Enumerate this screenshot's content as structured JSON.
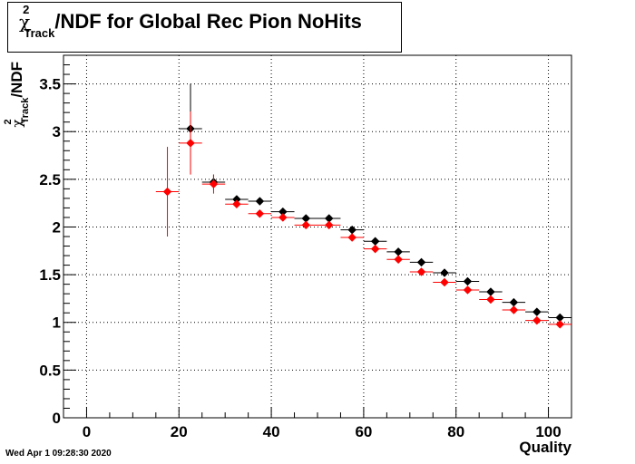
{
  "title": {
    "chi": "χ",
    "sup": "2",
    "sub": "Track",
    "rest": "/NDF for Global Rec Pion NoHits"
  },
  "ylabel": {
    "chi": "χ",
    "sup": "2",
    "sub": "Track",
    "rest": "/NDF"
  },
  "xlabel": "Quality",
  "footer": "Wed Apr  1 09:28:30 2020",
  "chart_data": {
    "type": "scatter",
    "title": "χ²_Track/NDF for Global Rec Pion NoHits",
    "xlabel": "Quality",
    "ylabel": "χ²_Track/NDF",
    "xlim": [
      -5,
      105
    ],
    "ylim": [
      0,
      3.8
    ],
    "grid": true,
    "x_ticks": [
      0,
      20,
      40,
      60,
      80,
      100
    ],
    "y_ticks": [
      0,
      0.5,
      1,
      1.5,
      2,
      2.5,
      3,
      3.5
    ],
    "x_tick_labels": [
      "0",
      "20",
      "40",
      "60",
      "80",
      "100"
    ],
    "y_tick_labels": [
      "0",
      "0.5",
      "1",
      "1.5",
      "2",
      "2.5",
      "3",
      "3.5"
    ],
    "series": [
      {
        "color": "#000000",
        "points": [
          {
            "x": 22.5,
            "y": 3.03,
            "xerr": 2.5,
            "yerr": 0.47
          },
          {
            "x": 27.5,
            "y": 2.47,
            "xerr": 2.5,
            "yerr": 0.08
          },
          {
            "x": 32.5,
            "y": 2.29,
            "xerr": 2.5,
            "yerr": 0.02
          },
          {
            "x": 37.5,
            "y": 2.27,
            "xerr": 2.5,
            "yerr": 0.02
          },
          {
            "x": 42.5,
            "y": 2.16,
            "xerr": 2.5,
            "yerr": 0.01
          },
          {
            "x": 47.5,
            "y": 2.09,
            "xerr": 2.5,
            "yerr": 0.01
          },
          {
            "x": 52.5,
            "y": 2.09,
            "xerr": 2.5,
            "yerr": 0.01
          },
          {
            "x": 57.5,
            "y": 1.97,
            "xerr": 2.5,
            "yerr": 0.01
          },
          {
            "x": 62.5,
            "y": 1.85,
            "xerr": 2.5,
            "yerr": 0.01
          },
          {
            "x": 67.5,
            "y": 1.74,
            "xerr": 2.5,
            "yerr": 0.01
          },
          {
            "x": 72.5,
            "y": 1.63,
            "xerr": 2.5,
            "yerr": 0.01
          },
          {
            "x": 77.5,
            "y": 1.52,
            "xerr": 2.5,
            "yerr": 0.01
          },
          {
            "x": 82.5,
            "y": 1.43,
            "xerr": 2.5,
            "yerr": 0.01
          },
          {
            "x": 87.5,
            "y": 1.32,
            "xerr": 2.5,
            "yerr": 0.01
          },
          {
            "x": 92.5,
            "y": 1.21,
            "xerr": 2.5,
            "yerr": 0.01
          },
          {
            "x": 97.5,
            "y": 1.11,
            "xerr": 2.5,
            "yerr": 0.01
          },
          {
            "x": 102.5,
            "y": 1.05,
            "xerr": 2.5,
            "yerr": 0.01
          }
        ]
      },
      {
        "color": "#ff0000",
        "points": [
          {
            "x": 17.5,
            "y": 2.37,
            "xerr": 2.5,
            "yerr": 0.47
          },
          {
            "x": 22.5,
            "y": 2.88,
            "xerr": 2.5,
            "yerr": 0.33
          },
          {
            "x": 27.5,
            "y": 2.45,
            "xerr": 2.5,
            "yerr": 0.1
          },
          {
            "x": 32.5,
            "y": 2.24,
            "xerr": 2.5,
            "yerr": 0.02
          },
          {
            "x": 37.5,
            "y": 2.14,
            "xerr": 2.5,
            "yerr": 0.02
          },
          {
            "x": 42.5,
            "y": 2.1,
            "xerr": 2.5,
            "yerr": 0.01
          },
          {
            "x": 47.5,
            "y": 2.02,
            "xerr": 2.5,
            "yerr": 0.01
          },
          {
            "x": 52.5,
            "y": 2.02,
            "xerr": 2.5,
            "yerr": 0.01
          },
          {
            "x": 57.5,
            "y": 1.89,
            "xerr": 2.5,
            "yerr": 0.01
          },
          {
            "x": 62.5,
            "y": 1.77,
            "xerr": 2.5,
            "yerr": 0.01
          },
          {
            "x": 67.5,
            "y": 1.66,
            "xerr": 2.5,
            "yerr": 0.01
          },
          {
            "x": 72.5,
            "y": 1.53,
            "xerr": 2.5,
            "yerr": 0.01
          },
          {
            "x": 77.5,
            "y": 1.42,
            "xerr": 2.5,
            "yerr": 0.01
          },
          {
            "x": 82.5,
            "y": 1.34,
            "xerr": 2.5,
            "yerr": 0.01
          },
          {
            "x": 87.5,
            "y": 1.24,
            "xerr": 2.5,
            "yerr": 0.01
          },
          {
            "x": 92.5,
            "y": 1.13,
            "xerr": 2.5,
            "yerr": 0.01
          },
          {
            "x": 97.5,
            "y": 1.02,
            "xerr": 2.5,
            "yerr": 0.01
          },
          {
            "x": 102.5,
            "y": 0.98,
            "xerr": 2.5,
            "yerr": 0.01
          }
        ]
      }
    ]
  }
}
